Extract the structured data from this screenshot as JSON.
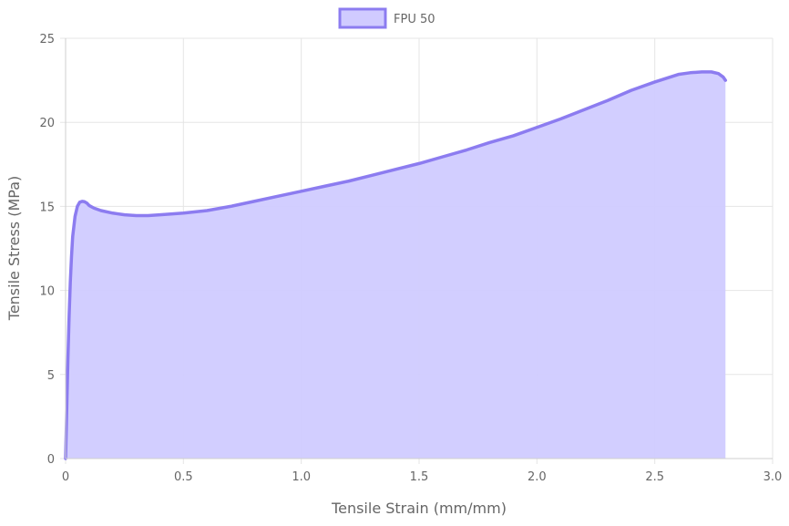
{
  "chart_data": {
    "type": "area",
    "xlabel": "Tensile Strain (mm/mm)",
    "ylabel": "Tensile Stress (MPa)",
    "xlim": [
      0,
      3.0
    ],
    "ylim": [
      0,
      25
    ],
    "x_ticks": [
      "0",
      "0.5",
      "1.0",
      "1.5",
      "2.0",
      "2.5",
      "3.0"
    ],
    "x_tick_values": [
      0,
      0.5,
      1.0,
      1.5,
      2.0,
      2.5,
      3.0
    ],
    "y_ticks": [
      "0",
      "5",
      "10",
      "15",
      "20",
      "25"
    ],
    "y_tick_values": [
      0,
      5,
      10,
      15,
      20,
      25
    ],
    "grid": true,
    "legend_position": "top-center",
    "series": [
      {
        "name": "FPU 50",
        "line_color": "#8c7cf0",
        "fill_color": "#d0cbff",
        "x": [
          0,
          0.005,
          0.01,
          0.015,
          0.02,
          0.025,
          0.03,
          0.04,
          0.05,
          0.06,
          0.07,
          0.08,
          0.09,
          0.1,
          0.12,
          0.15,
          0.2,
          0.25,
          0.3,
          0.35,
          0.4,
          0.5,
          0.6,
          0.7,
          0.8,
          0.9,
          1.0,
          1.1,
          1.2,
          1.3,
          1.4,
          1.5,
          1.6,
          1.7,
          1.8,
          1.9,
          2.0,
          2.1,
          2.2,
          2.3,
          2.4,
          2.5,
          2.6,
          2.65,
          2.7,
          2.74,
          2.77,
          2.79,
          2.8
        ],
        "y": [
          0,
          3.0,
          6.0,
          8.5,
          10.5,
          12.0,
          13.2,
          14.4,
          15.0,
          15.25,
          15.3,
          15.28,
          15.2,
          15.05,
          14.9,
          14.75,
          14.6,
          14.5,
          14.45,
          14.45,
          14.5,
          14.6,
          14.75,
          15.0,
          15.3,
          15.6,
          15.9,
          16.2,
          16.5,
          16.85,
          17.2,
          17.55,
          17.95,
          18.35,
          18.8,
          19.2,
          19.7,
          20.2,
          20.75,
          21.3,
          21.9,
          22.4,
          22.85,
          22.95,
          23.0,
          23.0,
          22.9,
          22.7,
          22.5
        ]
      }
    ]
  }
}
